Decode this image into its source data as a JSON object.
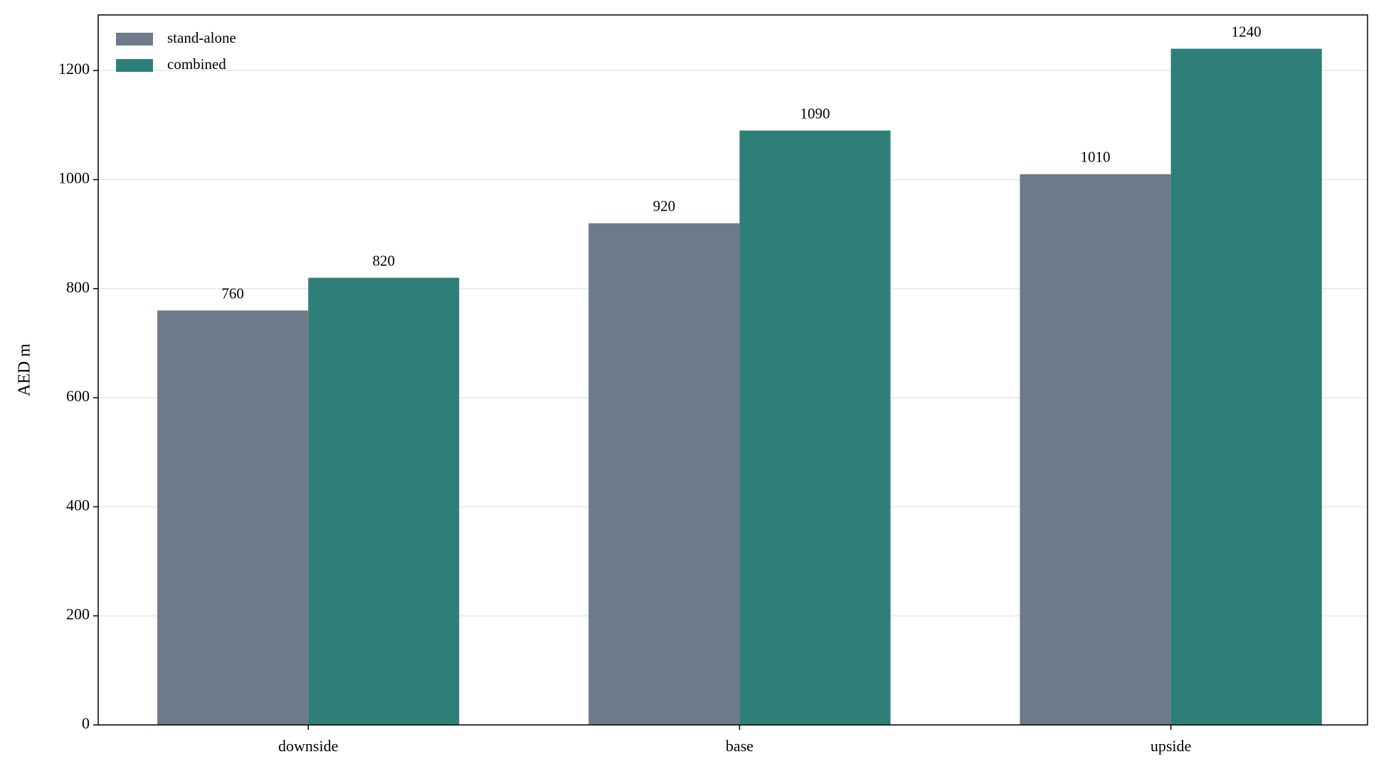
{
  "chart_data": {
    "type": "bar",
    "y_label": "AED m",
    "categories": [
      "downside",
      "base",
      "upside"
    ],
    "series": [
      {
        "name": "stand-alone",
        "color": "#6e7a8a",
        "values": [
          760,
          920,
          1010
        ]
      },
      {
        "name": "combined",
        "color": "#2e7f77",
        "values": [
          820,
          1090,
          1240
        ]
      }
    ],
    "ylim": [
      0,
      1302
    ],
    "yticks": [
      0,
      200,
      400,
      600,
      800,
      1000,
      1200
    ],
    "grid": true,
    "legend": "upper left"
  }
}
